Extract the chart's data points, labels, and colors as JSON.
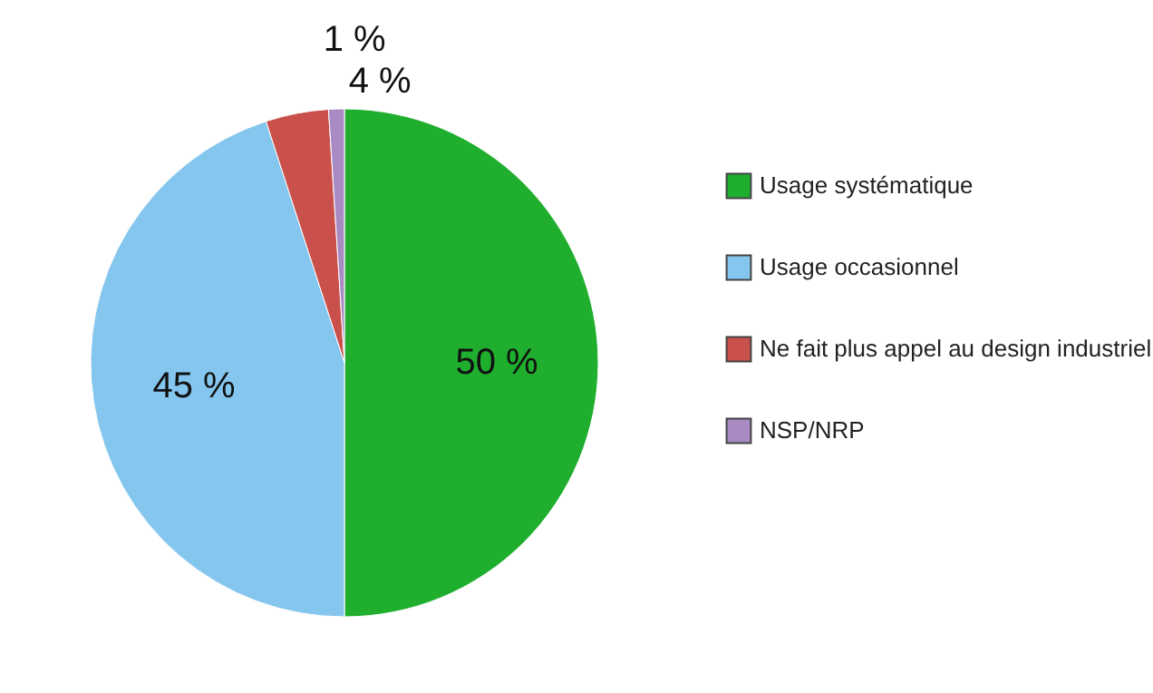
{
  "chart_data": {
    "type": "pie",
    "categories": [
      "Usage systématique",
      "Usage occasionnel",
      "Ne fait plus appel au design industriel",
      "NSP/NRP"
    ],
    "values": [
      50,
      45,
      4,
      1
    ],
    "colors": [
      "#1fae2e",
      "#84c6ee",
      "#c9504b",
      "#a98bc4"
    ],
    "value_labels": [
      "50 %",
      "45 %",
      "4 %",
      "1 %"
    ],
    "legend": "right"
  }
}
